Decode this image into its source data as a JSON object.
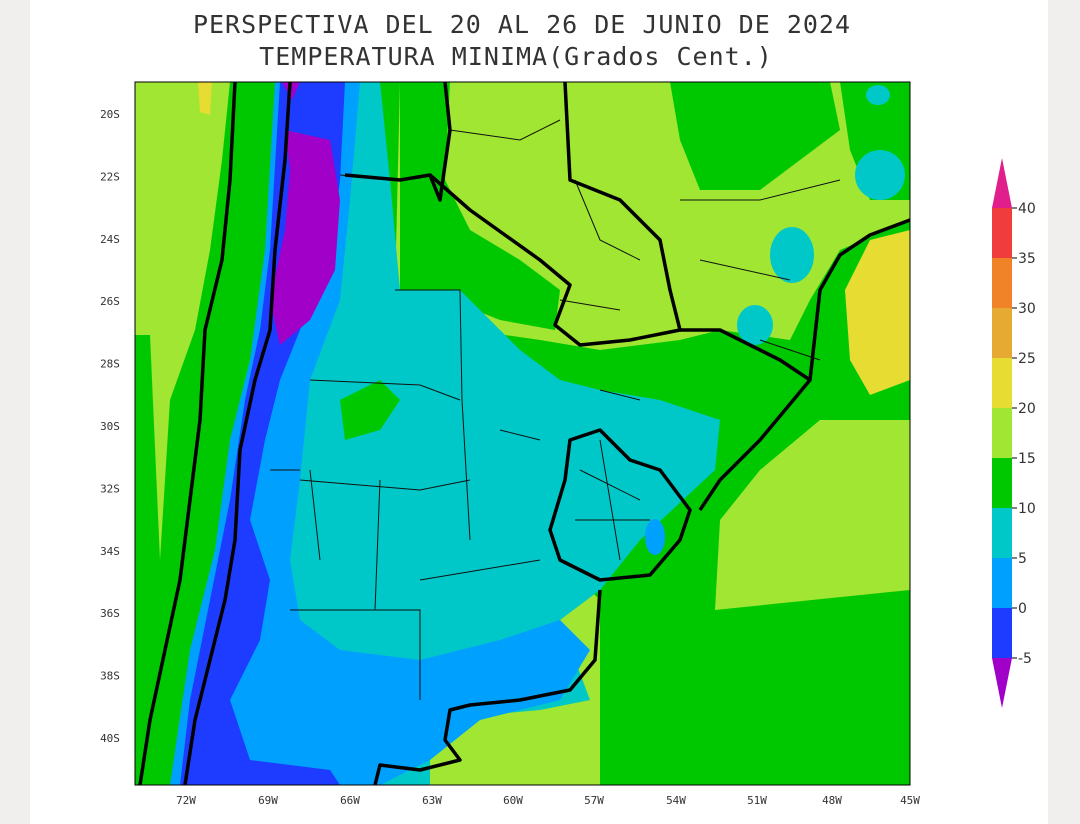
{
  "header": {
    "title_line_1": "PERSPECTIVA DEL 20 AL 26 DE JUNIO DE 2024",
    "title_line_2": "TEMPERATURA MINIMA(Grados Cent.)"
  },
  "map": {
    "latitude_labels": [
      "20S",
      "22S",
      "24S",
      "26S",
      "28S",
      "30S",
      "32S",
      "34S",
      "36S",
      "38S",
      "40S"
    ],
    "longitude_labels": [
      "72W",
      "69W",
      "66W",
      "63W",
      "60W",
      "57W",
      "54W",
      "51W",
      "48W",
      "45W"
    ]
  },
  "colorbar": {
    "labels": [
      "40",
      "35",
      "30",
      "25",
      "20",
      "15",
      "10",
      "5",
      "0",
      "-5"
    ],
    "colors": [
      "#e01e8c",
      "#f03c3c",
      "#f08228",
      "#e6aa32",
      "#e6dc32",
      "#a0e632",
      "#00c800",
      "#00c8c8",
      "#00a0ff",
      "#1e3cff",
      "#a000c8"
    ]
  }
}
